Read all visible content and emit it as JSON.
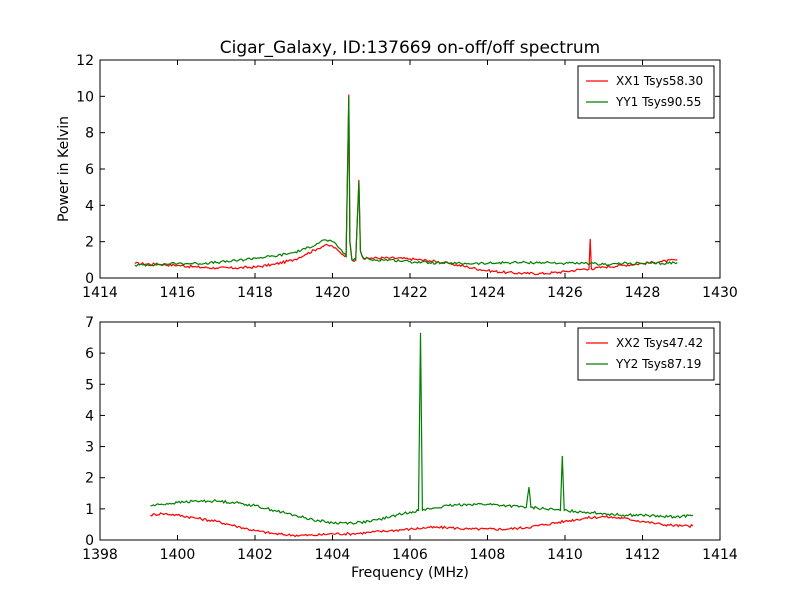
{
  "chart_data": [
    {
      "type": "line",
      "title": "Cigar_Galaxy, ID:137669 on-off/off spectrum",
      "xlabel": "",
      "ylabel": "Power in Kelvin",
      "xlim": [
        1414,
        1430
      ],
      "ylim": [
        0,
        12
      ],
      "xticks": [
        "1414",
        "1416",
        "1418",
        "1420",
        "1422",
        "1424",
        "1426",
        "1428",
        "1430"
      ],
      "yticks": [
        "0",
        "2",
        "4",
        "6",
        "8",
        "10",
        "12"
      ],
      "legend_position": "top-right",
      "grid": false,
      "series": [
        {
          "name": "XX1 Tsys58.30",
          "color": "#ff0000",
          "x": [
            1414.9,
            1415.5,
            1416.0,
            1416.5,
            1417.0,
            1417.5,
            1418.0,
            1418.5,
            1419.0,
            1419.3,
            1419.6,
            1419.8,
            1420.0,
            1420.2,
            1420.35,
            1420.42,
            1420.45,
            1420.5,
            1420.6,
            1420.68,
            1420.72,
            1420.8,
            1421.0,
            1421.5,
            1422.0,
            1422.5,
            1423.0,
            1423.5,
            1424.0,
            1424.5,
            1425.0,
            1425.5,
            1426.0,
            1426.5,
            1426.62,
            1426.65,
            1426.68,
            1427.0,
            1427.5,
            1428.0,
            1428.5,
            1428.9
          ],
          "y": [
            0.8,
            0.75,
            0.7,
            0.6,
            0.55,
            0.55,
            0.6,
            0.75,
            1.0,
            1.3,
            1.6,
            1.8,
            1.75,
            1.4,
            1.2,
            10.1,
            2.0,
            1.0,
            1.0,
            5.4,
            1.5,
            1.05,
            1.1,
            1.1,
            1.05,
            0.95,
            0.8,
            0.6,
            0.4,
            0.3,
            0.25,
            0.25,
            0.35,
            0.5,
            0.5,
            2.15,
            0.5,
            0.6,
            0.7,
            0.8,
            0.9,
            1.0
          ]
        },
        {
          "name": "YY1 Tsys90.55",
          "color": "#008000",
          "x": [
            1414.9,
            1415.5,
            1416.0,
            1416.5,
            1417.0,
            1417.5,
            1418.0,
            1418.5,
            1419.0,
            1419.3,
            1419.6,
            1419.8,
            1420.0,
            1420.2,
            1420.35,
            1420.42,
            1420.45,
            1420.5,
            1420.6,
            1420.68,
            1420.72,
            1420.8,
            1421.0,
            1421.5,
            1422.0,
            1422.5,
            1423.0,
            1423.5,
            1424.0,
            1424.5,
            1425.0,
            1425.5,
            1426.0,
            1426.5,
            1427.0,
            1427.5,
            1428.0,
            1428.5,
            1428.9
          ],
          "y": [
            0.7,
            0.75,
            0.8,
            0.8,
            0.85,
            0.95,
            1.1,
            1.2,
            1.4,
            1.6,
            1.9,
            2.1,
            2.0,
            1.6,
            1.2,
            10.0,
            2.0,
            1.0,
            1.0,
            5.3,
            1.5,
            1.1,
            1.0,
            1.0,
            0.9,
            0.85,
            0.8,
            0.8,
            0.8,
            0.85,
            0.85,
            0.85,
            0.8,
            0.8,
            0.75,
            0.8,
            0.8,
            0.8,
            0.85
          ]
        }
      ]
    },
    {
      "type": "line",
      "title": "",
      "xlabel": "Frequency (MHz)",
      "ylabel": "",
      "xlim": [
        1398,
        1414
      ],
      "ylim": [
        0,
        7
      ],
      "xticks": [
        "1398",
        "1400",
        "1402",
        "1404",
        "1406",
        "1408",
        "1410",
        "1412",
        "1414"
      ],
      "yticks": [
        "0",
        "1",
        "2",
        "3",
        "4",
        "5",
        "6",
        "7"
      ],
      "legend_position": "top-right",
      "grid": false,
      "series": [
        {
          "name": "XX2 Tsys47.42",
          "color": "#ff0000",
          "x": [
            1399.3,
            1399.6,
            1400.0,
            1400.5,
            1401.0,
            1401.5,
            1402.0,
            1402.5,
            1403.0,
            1403.5,
            1404.0,
            1404.5,
            1405.0,
            1405.5,
            1406.0,
            1406.5,
            1407.0,
            1407.5,
            1408.0,
            1408.5,
            1409.0,
            1409.5,
            1410.0,
            1410.5,
            1411.0,
            1411.5,
            1412.0,
            1412.5,
            1413.0,
            1413.3
          ],
          "y": [
            0.8,
            0.85,
            0.8,
            0.7,
            0.6,
            0.45,
            0.3,
            0.2,
            0.15,
            0.15,
            0.2,
            0.2,
            0.25,
            0.3,
            0.35,
            0.4,
            0.4,
            0.35,
            0.35,
            0.35,
            0.4,
            0.5,
            0.6,
            0.7,
            0.75,
            0.7,
            0.6,
            0.5,
            0.45,
            0.45
          ]
        },
        {
          "name": "YY2 Tsys87.19",
          "color": "#008000",
          "x": [
            1399.3,
            1399.6,
            1400.0,
            1400.5,
            1401.0,
            1401.5,
            1402.0,
            1402.5,
            1403.0,
            1403.5,
            1404.0,
            1404.5,
            1405.0,
            1405.5,
            1406.0,
            1406.22,
            1406.27,
            1406.32,
            1406.5,
            1407.0,
            1407.5,
            1408.0,
            1408.5,
            1409.0,
            1409.07,
            1409.12,
            1409.5,
            1409.88,
            1409.93,
            1409.98,
            1410.5,
            1411.0,
            1411.5,
            1412.0,
            1412.5,
            1413.0,
            1413.3
          ],
          "y": [
            1.1,
            1.15,
            1.2,
            1.25,
            1.25,
            1.2,
            1.1,
            0.95,
            0.8,
            0.65,
            0.55,
            0.55,
            0.6,
            0.75,
            0.9,
            0.95,
            6.65,
            0.95,
            1.0,
            1.1,
            1.15,
            1.15,
            1.1,
            1.05,
            1.7,
            1.05,
            1.0,
            0.95,
            2.7,
            0.95,
            0.9,
            0.85,
            0.8,
            0.8,
            0.75,
            0.75,
            0.8
          ]
        }
      ]
    }
  ]
}
